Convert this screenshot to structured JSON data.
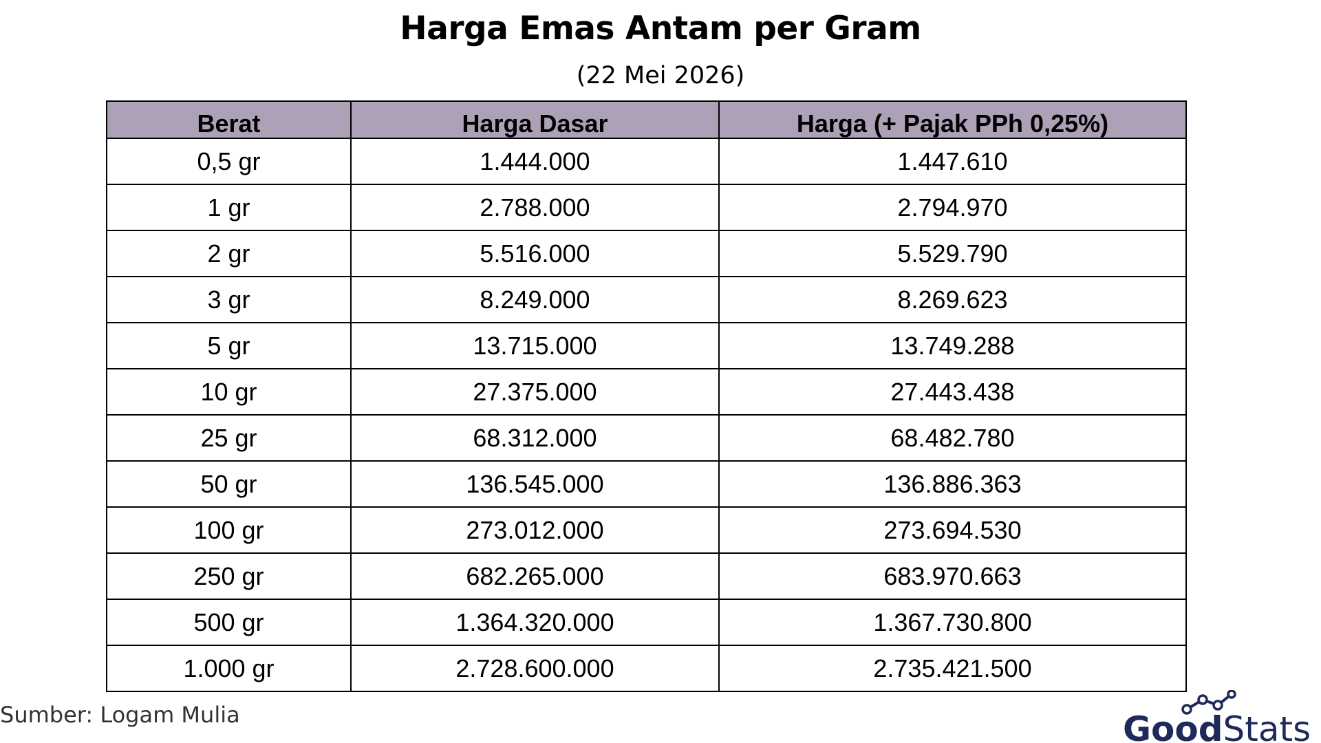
{
  "title": "Harga Emas Antam per Gram",
  "subtitle": "(22 Mei 2026)",
  "source": "Sumber: Logam Mulia",
  "logo_text": "GoodStats",
  "colors": {
    "header_bg": "#ada1b8",
    "logo_navy": "#1e2a5a",
    "border": "#000000"
  },
  "chart_data": {
    "type": "table",
    "title": "Harga Emas Antam per Gram",
    "subtitle": "(22 Mei 2026)",
    "columns": [
      "Berat",
      "Harga Dasar",
      "Harga (+ Pajak PPh 0,25%)"
    ],
    "rows": [
      [
        "0,5 gr",
        "1.444.000",
        "1.447.610"
      ],
      [
        "1 gr",
        "2.788.000",
        "2.794.970"
      ],
      [
        "2 gr",
        "5.516.000",
        "5.529.790"
      ],
      [
        "3 gr",
        "8.249.000",
        "8.269.623"
      ],
      [
        "5 gr",
        "13.715.000",
        "13.749.288"
      ],
      [
        "10 gr",
        "27.375.000",
        "27.443.438"
      ],
      [
        "25 gr",
        "68.312.000",
        "68.482.780"
      ],
      [
        "50 gr",
        "136.545.000",
        "136.886.363"
      ],
      [
        "100 gr",
        "273.012.000",
        "273.694.530"
      ],
      [
        "250 gr",
        "682.265.000",
        "683.970.663"
      ],
      [
        "500 gr",
        "1.364.320.000",
        "1.367.730.800"
      ],
      [
        "1.000 gr",
        "2.728.600.000",
        "2.735.421.500"
      ]
    ]
  }
}
